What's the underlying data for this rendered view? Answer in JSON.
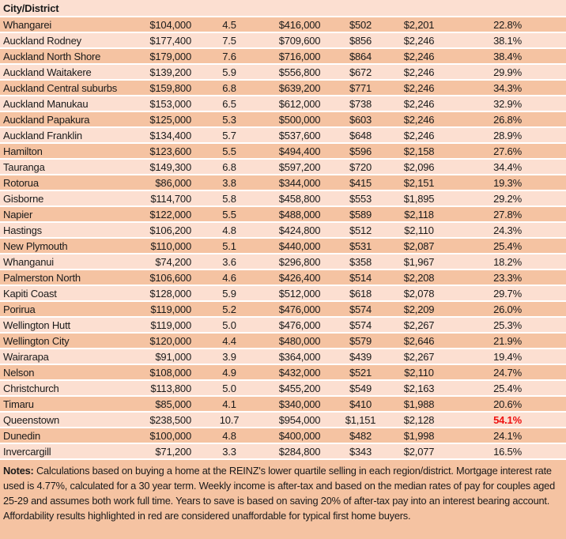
{
  "colors": {
    "row_dark": "#f5c3a2",
    "row_light": "#fcdfd1",
    "separator": "#ffffff",
    "text": "#1a1a1a",
    "highlight_red": "#ee1111"
  },
  "chart_data": {
    "type": "table",
    "header": "City/District",
    "rows": [
      {
        "city": "Whangarei",
        "values": [
          "$104,000",
          "4.5",
          "$416,000",
          "$502",
          "$2,201",
          "22.8%"
        ],
        "highlight": false
      },
      {
        "city": "Auckland Rodney",
        "values": [
          "$177,400",
          "7.5",
          "$709,600",
          "$856",
          "$2,246",
          "38.1%"
        ],
        "highlight": false
      },
      {
        "city": "Auckland North Shore",
        "values": [
          "$179,000",
          "7.6",
          "$716,000",
          "$864",
          "$2,246",
          "38.4%"
        ],
        "highlight": false
      },
      {
        "city": "Auckland Waitakere",
        "values": [
          "$139,200",
          "5.9",
          "$556,800",
          "$672",
          "$2,246",
          "29.9%"
        ],
        "highlight": false
      },
      {
        "city": "Auckland Central suburbs",
        "values": [
          "$159,800",
          "6.8",
          "$639,200",
          "$771",
          "$2,246",
          "34.3%"
        ],
        "highlight": false
      },
      {
        "city": "Auckland Manukau",
        "values": [
          "$153,000",
          "6.5",
          "$612,000",
          "$738",
          "$2,246",
          "32.9%"
        ],
        "highlight": false
      },
      {
        "city": "Auckland Papakura",
        "values": [
          "$125,000",
          "5.3",
          "$500,000",
          "$603",
          "$2,246",
          "26.8%"
        ],
        "highlight": false
      },
      {
        "city": "Auckland Franklin",
        "values": [
          "$134,400",
          "5.7",
          "$537,600",
          "$648",
          "$2,246",
          "28.9%"
        ],
        "highlight": false
      },
      {
        "city": "Hamilton",
        "values": [
          "$123,600",
          "5.5",
          "$494,400",
          "$596",
          "$2,158",
          "27.6%"
        ],
        "highlight": false
      },
      {
        "city": "Tauranga",
        "values": [
          "$149,300",
          "6.8",
          "$597,200",
          "$720",
          "$2,096",
          "34.4%"
        ],
        "highlight": false
      },
      {
        "city": "Rotorua",
        "values": [
          "$86,000",
          "3.8",
          "$344,000",
          "$415",
          "$2,151",
          "19.3%"
        ],
        "highlight": false
      },
      {
        "city": "Gisborne",
        "values": [
          "$114,700",
          "5.8",
          "$458,800",
          "$553",
          "$1,895",
          "29.2%"
        ],
        "highlight": false
      },
      {
        "city": "Napier",
        "values": [
          "$122,000",
          "5.5",
          "$488,000",
          "$589",
          "$2,118",
          "27.8%"
        ],
        "highlight": false
      },
      {
        "city": "Hastings",
        "values": [
          "$106,200",
          "4.8",
          "$424,800",
          "$512",
          "$2,110",
          "24.3%"
        ],
        "highlight": false
      },
      {
        "city": "New Plymouth",
        "values": [
          "$110,000",
          "5.1",
          "$440,000",
          "$531",
          "$2,087",
          "25.4%"
        ],
        "highlight": false
      },
      {
        "city": "Whanganui",
        "values": [
          "$74,200",
          "3.6",
          "$296,800",
          "$358",
          "$1,967",
          "18.2%"
        ],
        "highlight": false
      },
      {
        "city": "Palmerston North",
        "values": [
          "$106,600",
          "4.6",
          "$426,400",
          "$514",
          "$2,208",
          "23.3%"
        ],
        "highlight": false
      },
      {
        "city": "Kapiti Coast",
        "values": [
          "$128,000",
          "5.9",
          "$512,000",
          "$618",
          "$2,078",
          "29.7%"
        ],
        "highlight": false
      },
      {
        "city": "Porirua",
        "values": [
          "$119,000",
          "5.2",
          "$476,000",
          "$574",
          "$2,209",
          "26.0%"
        ],
        "highlight": false
      },
      {
        "city": "Wellington Hutt",
        "values": [
          "$119,000",
          "5.0",
          "$476,000",
          "$574",
          "$2,267",
          "25.3%"
        ],
        "highlight": false
      },
      {
        "city": "Wellington City",
        "values": [
          "$120,000",
          "4.4",
          "$480,000",
          "$579",
          "$2,646",
          "21.9%"
        ],
        "highlight": false
      },
      {
        "city": "Wairarapa",
        "values": [
          "$91,000",
          "3.9",
          "$364,000",
          "$439",
          "$2,267",
          "19.4%"
        ],
        "highlight": false
      },
      {
        "city": "Nelson",
        "values": [
          "$108,000",
          "4.9",
          "$432,000",
          "$521",
          "$2,110",
          "24.7%"
        ],
        "highlight": false
      },
      {
        "city": "Christchurch",
        "values": [
          "$113,800",
          "5.0",
          "$455,200",
          "$549",
          "$2,163",
          "25.4%"
        ],
        "highlight": false
      },
      {
        "city": "Timaru",
        "values": [
          "$85,000",
          "4.1",
          "$340,000",
          "$410",
          "$1,988",
          "20.6%"
        ],
        "highlight": false
      },
      {
        "city": "Queenstown",
        "values": [
          "$238,500",
          "10.7",
          "$954,000",
          "$1,151",
          "$2,128",
          "54.1%"
        ],
        "highlight": true
      },
      {
        "city": "Dunedin",
        "values": [
          "$100,000",
          "4.8",
          "$400,000",
          "$482",
          "$1,998",
          "24.1%"
        ],
        "highlight": false
      },
      {
        "city": "Invercargill",
        "values": [
          "$71,200",
          "3.3",
          "$284,800",
          "$343",
          "$2,077",
          "16.5%"
        ],
        "highlight": false
      }
    ]
  },
  "notes": {
    "label": "Notes:",
    "text": " Calculations based on buying a home at the REINZ's lower quartile selling in each region/district. Mortgage interest rate used is 4.77%, calculated for a 30 year term. Weekly income is after-tax and based on the median rates of pay for couples aged 25-29 and assumes both work full time. Years to save is based on saving 20% of after-tax pay into an interest bearing account. Affordability results highlighted in red are considered unaffordable for typical first home buyers."
  }
}
